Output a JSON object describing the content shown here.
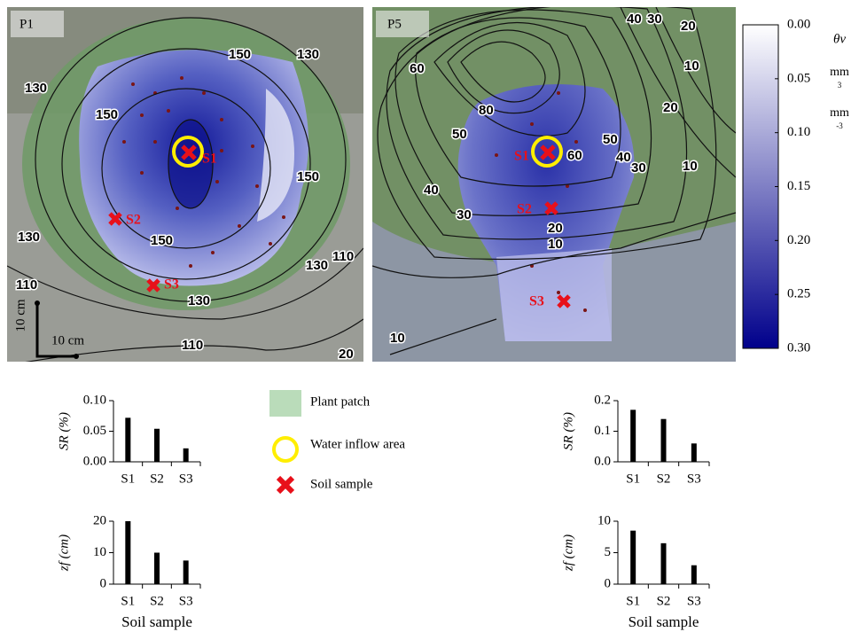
{
  "maps": [
    {
      "label": "P1",
      "contour_labels": [
        "150",
        "130",
        "130",
        "150",
        "150",
        "150",
        "130",
        "130",
        "110",
        "130",
        "110",
        "110",
        "20"
      ],
      "samples": [
        "S1",
        "S2",
        "S3"
      ],
      "scale_v": "10 cm",
      "scale_h": "10 cm"
    },
    {
      "label": "P5",
      "contour_labels": [
        "40",
        "30",
        "20",
        "10",
        "60",
        "80",
        "20",
        "10",
        "60",
        "50",
        "40",
        "50",
        "40",
        "30",
        "30",
        "20",
        "10",
        "10"
      ],
      "samples": [
        "S1",
        "S2",
        "S3"
      ]
    }
  ],
  "legend": {
    "items": [
      "Plant patch",
      "Water inflow area",
      "Soil sample"
    ]
  },
  "chart_data": [
    {
      "type": "bar",
      "ylabel": "SR (%)",
      "categories": [
        "S1",
        "S2",
        "S3"
      ],
      "values": [
        0.072,
        0.054,
        0.022
      ],
      "color": "#000000",
      "ylim": [
        0,
        0.1
      ],
      "yticks": [
        {
          "value": 0,
          "label": "0.00"
        },
        {
          "value": 0.05,
          "label": "0.05"
        },
        {
          "value": 0.1,
          "label": "0.10"
        }
      ]
    },
    {
      "type": "bar",
      "ylabel": "zf (cm)",
      "xlabel": "Soil sample",
      "categories": [
        "S1",
        "S2",
        "S3"
      ],
      "values": [
        20,
        10,
        7.5
      ],
      "color": "#000000",
      "ylim": [
        0,
        20
      ],
      "yticks": [
        0,
        10,
        20
      ]
    },
    {
      "type": "bar",
      "ylabel": "SR (%)",
      "categories": [
        "S1",
        "S2",
        "S3"
      ],
      "values": [
        0.17,
        0.14,
        0.06
      ],
      "color": "#000000",
      "ylim": [
        0,
        0.2
      ],
      "yticks": [
        {
          "value": 0,
          "label": "0.0"
        },
        {
          "value": 0.1,
          "label": "0.1"
        },
        {
          "value": 0.2,
          "label": "0.2"
        }
      ]
    },
    {
      "type": "bar",
      "ylabel": "zf (cm)",
      "xlabel": "Soil sample",
      "categories": [
        "S1",
        "S2",
        "S3"
      ],
      "values": [
        8.5,
        6.5,
        3
      ],
      "color": "#000000",
      "ylim": [
        0,
        10
      ],
      "yticks": [
        0,
        5,
        10
      ]
    },
    {
      "type": "colorbar",
      "title": "θv",
      "units": [
        "mm",
        "3",
        "mm",
        "-3"
      ],
      "ylim": [
        0,
        0.3
      ],
      "y_inverted": true,
      "colors": [
        "#ffffff",
        "#00008b"
      ],
      "yticks": [
        {
          "value": 0,
          "label": "0.00"
        },
        {
          "value": 0.05,
          "label": "0.05"
        },
        {
          "value": 0.1,
          "label": "0.10"
        },
        {
          "value": 0.15,
          "label": "0.15"
        },
        {
          "value": 0.2,
          "label": "0.20"
        },
        {
          "value": 0.25,
          "label": "0.25"
        },
        {
          "value": 0.3,
          "label": "0.30"
        }
      ]
    }
  ]
}
